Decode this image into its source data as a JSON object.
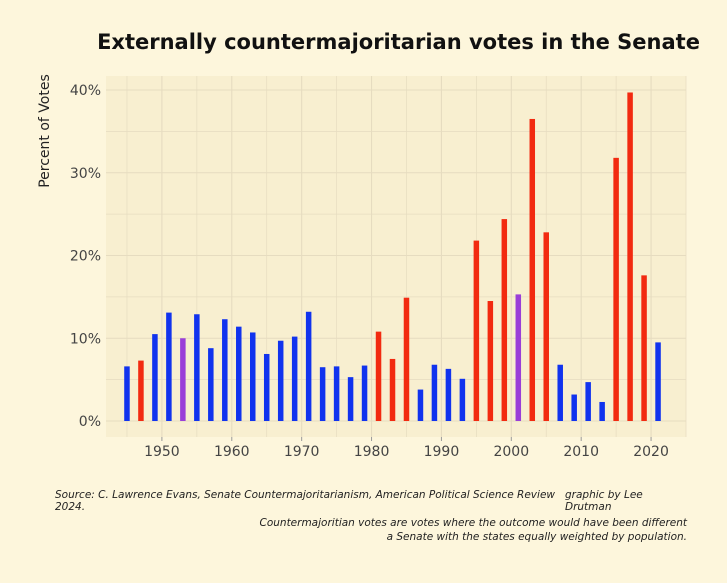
{
  "title": "Externally countermajoritarian votes in the Senate",
  "source": "Source: C. Lawrence Evans, Senate Countermajoritarianism, American Political Science Review 2024.",
  "credit": "graphic by Lee Drutman",
  "footnote_line1": "Countermajoritian votes are votes where the outcome would have been different",
  "footnote_line2": "a Senate with the states equally weighted by population.",
  "colors": {
    "blue": "#1133ee",
    "red": "#f22a10",
    "purple": "#9a3ed8",
    "panel": "#f8efd0",
    "grid": "#e6dcc0"
  },
  "chart_data": {
    "type": "bar",
    "title": "Externally countermajoritarian votes in the Senate",
    "xlabel": "",
    "ylabel": "Percent of Votes",
    "xlim": [
      1942,
      2025
    ],
    "ylim": [
      0,
      40
    ],
    "xticks": [
      1950,
      1960,
      1970,
      1980,
      1990,
      2000,
      2010,
      2020
    ],
    "xtick_labels": [
      "1950",
      "1960",
      "1970",
      "1980",
      "1990",
      "2000",
      "2010",
      "2020"
    ],
    "yticks": [
      0,
      10,
      20,
      30,
      40
    ],
    "ytick_labels": [
      "0%",
      "10%",
      "20%",
      "30%",
      "40%"
    ],
    "grid": true,
    "x": [
      1945,
      1947,
      1949,
      1951,
      1953,
      1955,
      1957,
      1959,
      1961,
      1963,
      1965,
      1967,
      1969,
      1971,
      1973,
      1975,
      1977,
      1979,
      1981,
      1983,
      1985,
      1987,
      1989,
      1991,
      1993,
      1995,
      1997,
      1999,
      2001,
      2003,
      2005,
      2007,
      2009,
      2011,
      2013,
      2015,
      2017,
      2019,
      2021
    ],
    "values": [
      6.6,
      7.3,
      10.5,
      13.1,
      10.0,
      12.9,
      8.8,
      12.3,
      11.4,
      10.7,
      8.1,
      9.7,
      10.2,
      13.2,
      6.5,
      6.6,
      5.3,
      6.7,
      10.8,
      7.5,
      14.9,
      3.8,
      6.8,
      6.3,
      5.1,
      21.8,
      14.5,
      24.4,
      15.3,
      36.5,
      22.8,
      6.8,
      3.2,
      4.7,
      2.3,
      31.8,
      39.7,
      17.6,
      9.5
    ],
    "bar_colors": [
      "blue",
      "red",
      "blue",
      "blue",
      "purple",
      "blue",
      "blue",
      "blue",
      "blue",
      "blue",
      "blue",
      "blue",
      "blue",
      "blue",
      "blue",
      "blue",
      "blue",
      "blue",
      "red",
      "red",
      "red",
      "blue",
      "blue",
      "blue",
      "blue",
      "red",
      "red",
      "red",
      "purple",
      "red",
      "red",
      "blue",
      "blue",
      "blue",
      "blue",
      "red",
      "red",
      "red",
      "blue"
    ]
  }
}
